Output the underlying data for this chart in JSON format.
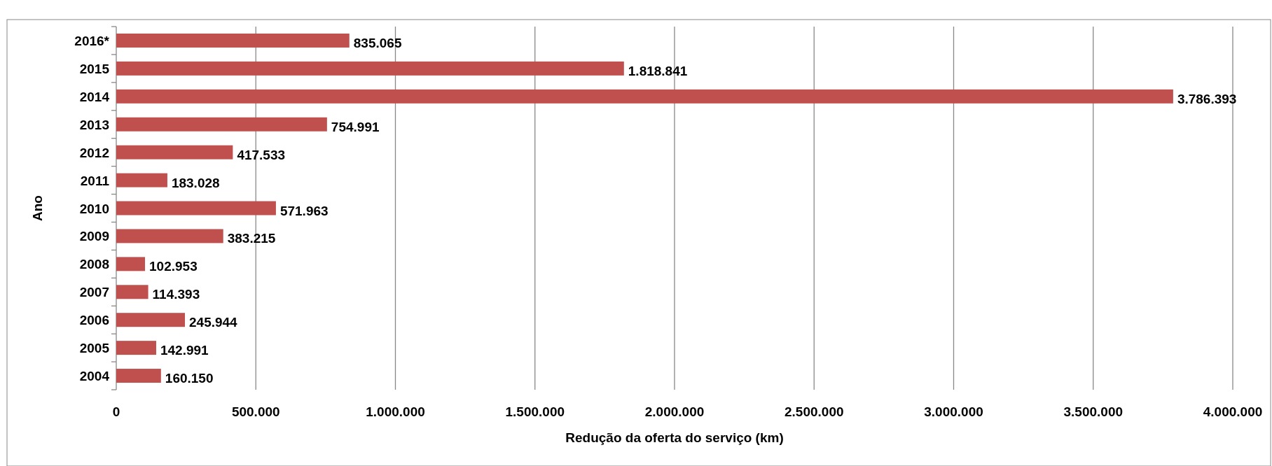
{
  "chart_data": {
    "type": "bar",
    "orientation": "horizontal",
    "xlabel": "Redução da oferta do serviço (km)",
    "ylabel": "Ano",
    "categories": [
      "2016*",
      "2015",
      "2014",
      "2013",
      "2012",
      "2011",
      "2010",
      "2009",
      "2008",
      "2007",
      "2006",
      "2005",
      "2004"
    ],
    "values": [
      835065,
      1818841,
      3786393,
      754991,
      417533,
      183028,
      571963,
      383215,
      102953,
      114393,
      245944,
      142991,
      160150
    ],
    "value_labels": [
      "835.065",
      "1.818.841",
      "3.786.393",
      "754.991",
      "417.533",
      "183.028",
      "571.963",
      "383.215",
      "102.953",
      "114.393",
      "245.944",
      "142.991",
      "160.150"
    ],
    "color": "#c0504d",
    "xlim": [
      0,
      4000000
    ],
    "xticks": [
      0,
      {
        "value": 500000,
        "label": "500.000"
      },
      {
        "value": 1000000,
        "label": "1.000.000"
      },
      {
        "value": 1500000,
        "label": "1.500.000"
      },
      {
        "value": 2000000,
        "label": "2.000.000"
      },
      {
        "value": 2500000,
        "label": "2.500.000"
      },
      {
        "value": 3000000,
        "label": "3.000.000"
      },
      {
        "value": 3500000,
        "label": "3.500.000"
      },
      {
        "value": 4000000,
        "label": "4.000.000"
      }
    ],
    "grid": "x"
  }
}
